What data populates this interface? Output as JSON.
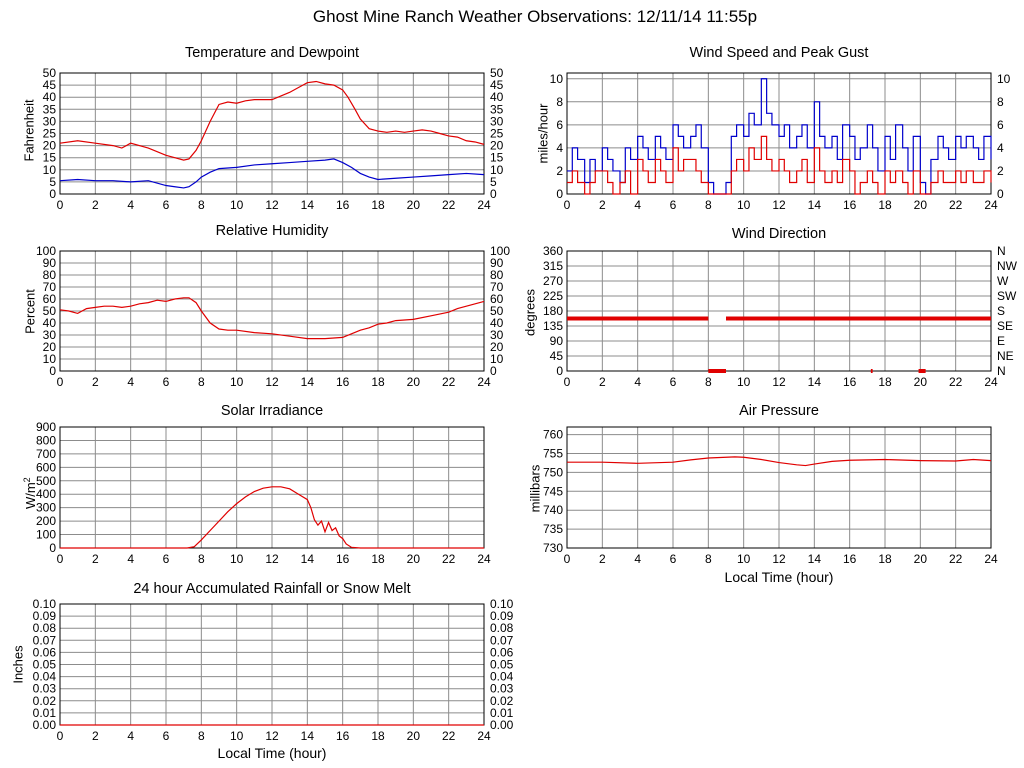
{
  "title": "Ghost Mine Ranch Weather Observations: 12/11/14 11:55p",
  "colors": {
    "red": "#e00000",
    "blue": "#0000cc",
    "grid": "#8c8c8c"
  },
  "chart_data": [
    {
      "id": "temp",
      "type": "line",
      "title": "Temperature and Dewpoint",
      "ylabel": "Fahrenheit",
      "xlabel": "",
      "xlim": [
        0,
        24
      ],
      "ylim": [
        0,
        50
      ],
      "xticks": [
        "0",
        "2",
        "4",
        "6",
        "8",
        "10",
        "12",
        "14",
        "16",
        "18",
        "20",
        "22",
        "24"
      ],
      "yticks": [
        "0",
        "5",
        "10",
        "15",
        "20",
        "25",
        "30",
        "35",
        "40",
        "45",
        "50"
      ],
      "right_ticks": [
        "0",
        "5",
        "10",
        "15",
        "20",
        "25",
        "30",
        "35",
        "40",
        "45",
        "50"
      ],
      "series": [
        {
          "color": "red",
          "x": [
            0,
            1,
            2,
            3,
            3.5,
            4,
            5,
            6,
            6.5,
            7,
            7.3,
            7.7,
            8,
            8.5,
            9,
            9.5,
            10,
            10.5,
            11,
            12,
            13,
            13.5,
            14,
            14.5,
            15,
            15.5,
            16,
            16.3,
            16.7,
            17,
            17.5,
            18,
            18.5,
            19,
            19.5,
            20,
            20.5,
            21,
            21.5,
            22,
            22.5,
            23,
            23.5,
            24
          ],
          "y": [
            21,
            22,
            21,
            20,
            19,
            21,
            19,
            16,
            15,
            14,
            14.5,
            18,
            22,
            30,
            37,
            38,
            37.5,
            38.5,
            39,
            39,
            42,
            44,
            46,
            46.5,
            45.5,
            45,
            43,
            40,
            35,
            31,
            27,
            26,
            25.5,
            26,
            25.5,
            26,
            26.5,
            26,
            25,
            24,
            23.5,
            22,
            21.5,
            20.5
          ]
        },
        {
          "color": "blue",
          "x": [
            0,
            1,
            2,
            3,
            4,
            5,
            6,
            6.5,
            7,
            7.3,
            7.7,
            8,
            8.5,
            9,
            10,
            11,
            12,
            13,
            14,
            15,
            15.5,
            16,
            16.5,
            17,
            17.5,
            18,
            19,
            20,
            21,
            22,
            23,
            24
          ],
          "y": [
            5.5,
            6,
            5.5,
            5.5,
            5,
            5.5,
            3.5,
            3,
            2.5,
            3,
            5,
            7,
            9,
            10.5,
            11,
            12,
            12.5,
            13,
            13.5,
            14,
            14.5,
            13,
            11,
            8.5,
            7,
            6,
            6.5,
            7,
            7.5,
            8,
            8.5,
            8
          ]
        }
      ]
    },
    {
      "id": "wind",
      "type": "line",
      "title": "Wind Speed and Peak Gust",
      "ylabel": "miles/hour",
      "xlabel": "",
      "xlim": [
        0,
        24
      ],
      "ylim": [
        0,
        10.5
      ],
      "xticks": [
        "0",
        "2",
        "4",
        "6",
        "8",
        "10",
        "12",
        "14",
        "16",
        "18",
        "20",
        "22",
        "24"
      ],
      "yticks": [
        "0",
        "2",
        "4",
        "6",
        "8",
        "10"
      ],
      "right_ticks": [
        "0",
        "2",
        "4",
        "6",
        "8",
        "10"
      ],
      "series": [
        {
          "color": "blue",
          "x": [
            0,
            0.3,
            0.6,
            1,
            1.3,
            1.6,
            2,
            2.3,
            2.6,
            3,
            3.3,
            3.6,
            4,
            4.3,
            4.6,
            5,
            5.3,
            5.6,
            6,
            6.3,
            6.6,
            7,
            7.3,
            7.6,
            8,
            8.3,
            8.6,
            9,
            9.3,
            9.6,
            10,
            10.3,
            10.6,
            11,
            11.3,
            11.6,
            12,
            12.3,
            12.6,
            13,
            13.3,
            13.6,
            14,
            14.3,
            14.6,
            15,
            15.3,
            15.6,
            16,
            16.3,
            16.6,
            17,
            17.3,
            17.6,
            18,
            18.3,
            18.6,
            19,
            19.3,
            19.6,
            20,
            20.3,
            20.6,
            21,
            21.3,
            21.6,
            22,
            22.3,
            22.6,
            23,
            23.3,
            23.6,
            24
          ],
          "y": [
            2,
            4,
            3,
            1,
            3,
            2,
            4,
            3,
            2,
            1,
            4,
            3,
            5,
            4,
            3,
            5,
            4,
            3,
            6,
            5,
            4,
            5,
            6,
            4,
            1,
            0,
            0,
            1,
            5,
            6,
            5,
            7,
            6,
            10,
            7,
            6,
            5,
            6,
            4,
            5,
            6,
            4,
            8,
            5,
            4,
            5,
            3,
            6,
            5,
            3,
            4,
            6,
            4,
            2,
            5,
            3,
            6,
            4,
            2,
            5,
            1,
            0,
            3,
            5,
            4,
            3,
            5,
            4,
            5,
            4,
            3,
            5,
            3
          ],
          "step": true
        },
        {
          "color": "red",
          "x": [
            0,
            0.3,
            0.6,
            1,
            1.3,
            1.6,
            2,
            2.3,
            2.6,
            3,
            3.3,
            3.6,
            4,
            4.3,
            4.6,
            5,
            5.3,
            5.6,
            6,
            6.3,
            6.6,
            7,
            7.3,
            7.6,
            8,
            8.3,
            8.6,
            9,
            9.3,
            9.6,
            10,
            10.3,
            10.6,
            11,
            11.3,
            11.6,
            12,
            12.3,
            12.6,
            13,
            13.3,
            13.6,
            14,
            14.3,
            14.6,
            15,
            15.3,
            15.6,
            16,
            16.3,
            16.6,
            17,
            17.3,
            17.6,
            18,
            18.3,
            18.6,
            19,
            19.3,
            19.6,
            20,
            20.3,
            20.6,
            21,
            21.3,
            21.6,
            22,
            22.3,
            22.6,
            23,
            23.3,
            23.6,
            24
          ],
          "y": [
            1,
            2,
            1,
            0,
            1,
            2,
            2,
            1,
            0,
            1,
            2,
            0,
            3,
            2,
            1,
            3,
            2,
            1,
            4,
            2,
            3,
            3,
            2,
            1,
            0,
            0,
            0,
            0,
            2,
            3,
            2,
            4,
            3,
            5,
            3,
            2,
            3,
            2,
            1,
            2,
            3,
            1,
            4,
            2,
            1,
            2,
            1,
            3,
            2,
            0,
            1,
            2,
            1,
            0,
            2,
            1,
            2,
            1,
            0,
            2,
            0,
            0,
            1,
            2,
            1,
            1,
            2,
            1,
            2,
            1,
            1,
            2,
            1
          ],
          "step": true
        }
      ]
    },
    {
      "id": "rh",
      "type": "line",
      "title": "Relative Humidity",
      "ylabel": "Percent",
      "xlabel": "",
      "xlim": [
        0,
        24
      ],
      "ylim": [
        0,
        100
      ],
      "xticks": [
        "0",
        "2",
        "4",
        "6",
        "8",
        "10",
        "12",
        "14",
        "16",
        "18",
        "20",
        "22",
        "24"
      ],
      "yticks": [
        "0",
        "10",
        "20",
        "30",
        "40",
        "50",
        "60",
        "70",
        "80",
        "90",
        "100"
      ],
      "right_ticks": [
        "0",
        "10",
        "20",
        "30",
        "40",
        "50",
        "60",
        "70",
        "80",
        "90",
        "100"
      ],
      "series": [
        {
          "color": "red",
          "x": [
            0,
            0.5,
            1,
            1.5,
            2,
            2.5,
            3,
            3.5,
            4,
            4.5,
            5,
            5.5,
            6,
            6.5,
            7,
            7.3,
            7.7,
            8,
            8.5,
            9,
            9.5,
            10,
            11,
            12,
            13,
            14,
            15,
            16,
            16.5,
            17,
            17.5,
            18,
            18.5,
            19,
            20,
            21,
            22,
            22.5,
            23,
            23.5,
            24
          ],
          "y": [
            51,
            50,
            48,
            52,
            53,
            54,
            54,
            53,
            54,
            56,
            57,
            59,
            58,
            60,
            61,
            61,
            57,
            50,
            40,
            35,
            34,
            34,
            32,
            31,
            29,
            27,
            27,
            28,
            31,
            34,
            36,
            39,
            40,
            42,
            43,
            46,
            49,
            52,
            54,
            56,
            58
          ]
        }
      ]
    },
    {
      "id": "wdir",
      "type": "scatter",
      "title": "Wind Direction",
      "ylabel": "degrees",
      "xlabel": "",
      "xlim": [
        0,
        24
      ],
      "ylim": [
        0,
        360
      ],
      "xticks": [
        "0",
        "2",
        "4",
        "6",
        "8",
        "10",
        "12",
        "14",
        "16",
        "18",
        "20",
        "22",
        "24"
      ],
      "yticks": [
        "0",
        "45",
        "90",
        "135",
        "180",
        "225",
        "270",
        "315",
        "360"
      ],
      "right_ticks": [
        "N",
        "NE",
        "E",
        "SE",
        "S",
        "SW",
        "W",
        "NW",
        "N"
      ],
      "segments": [
        {
          "x0": 0,
          "x1": 8.0,
          "y": 157.5
        },
        {
          "x0": 9.0,
          "x1": 24,
          "y": 157.5
        },
        {
          "x0": 8.0,
          "x1": 9.0,
          "y": 0
        },
        {
          "x0": 17.2,
          "x1": 17.3,
          "y": 0
        },
        {
          "x0": 19.9,
          "x1": 20.3,
          "y": 0
        }
      ]
    },
    {
      "id": "solar",
      "type": "line",
      "title": "Solar Irradiance",
      "ylabel": "W/m",
      "ylabel_sup": "2",
      "xlabel": "",
      "xlim": [
        0,
        24
      ],
      "ylim": [
        0,
        900
      ],
      "xticks": [
        "0",
        "2",
        "4",
        "6",
        "8",
        "10",
        "12",
        "14",
        "16",
        "18",
        "20",
        "22",
        "24"
      ],
      "yticks": [
        "0",
        "100",
        "200",
        "300",
        "400",
        "500",
        "600",
        "700",
        "800",
        "900"
      ],
      "right_ticks": [],
      "series": [
        {
          "color": "red",
          "x": [
            0,
            7.2,
            7.6,
            8,
            8.5,
            9,
            9.5,
            10,
            10.5,
            11,
            11.5,
            12,
            12.5,
            13,
            13.5,
            14,
            14.2,
            14.4,
            14.6,
            14.8,
            15,
            15.2,
            15.4,
            15.6,
            15.8,
            16,
            16.2,
            16.5,
            17,
            24
          ],
          "y": [
            0,
            0,
            10,
            60,
            130,
            200,
            270,
            330,
            380,
            420,
            445,
            455,
            455,
            440,
            400,
            360,
            300,
            210,
            170,
            200,
            120,
            190,
            130,
            150,
            90,
            70,
            30,
            5,
            0,
            0
          ]
        }
      ]
    },
    {
      "id": "pressure",
      "type": "line",
      "title": "Air Pressure",
      "ylabel": "millibars",
      "xlabel": "Local Time (hour)",
      "xlim": [
        0,
        24
      ],
      "ylim": [
        730,
        762
      ],
      "xticks": [
        "0",
        "2",
        "4",
        "6",
        "8",
        "10",
        "12",
        "14",
        "16",
        "18",
        "20",
        "22",
        "24"
      ],
      "yticks": [
        "730",
        "735",
        "740",
        "745",
        "750",
        "755",
        "760"
      ],
      "right_ticks": [],
      "series": [
        {
          "color": "red",
          "x": [
            0,
            2,
            4,
            6,
            7,
            8,
            9,
            9.5,
            10,
            11,
            12,
            13,
            13.5,
            14,
            15,
            16,
            18,
            20,
            22,
            23,
            24
          ],
          "y": [
            752.7,
            752.7,
            752.4,
            752.7,
            753.3,
            753.8,
            754.0,
            754.1,
            754.0,
            753.4,
            752.6,
            752.0,
            751.8,
            752.2,
            752.9,
            753.2,
            753.4,
            753.1,
            753.0,
            753.4,
            753.1
          ]
        }
      ]
    },
    {
      "id": "rain",
      "type": "line",
      "title": "24 hour Accumulated Rainfall or Snow Melt",
      "ylabel": "Inches",
      "xlabel": "Local Time (hour)",
      "xlim": [
        0,
        24
      ],
      "ylim": [
        0,
        0.1
      ],
      "xticks": [
        "0",
        "2",
        "4",
        "6",
        "8",
        "10",
        "12",
        "14",
        "16",
        "18",
        "20",
        "22",
        "24"
      ],
      "yticks": [
        "0.00",
        "0.01",
        "0.02",
        "0.03",
        "0.04",
        "0.05",
        "0.06",
        "0.07",
        "0.08",
        "0.09",
        "0.10"
      ],
      "right_ticks": [
        "0.00",
        "0.01",
        "0.02",
        "0.03",
        "0.04",
        "0.05",
        "0.06",
        "0.07",
        "0.08",
        "0.09",
        "0.10"
      ],
      "series": [
        {
          "color": "red",
          "x": [
            0,
            24
          ],
          "y": [
            0,
            0
          ]
        }
      ]
    }
  ]
}
